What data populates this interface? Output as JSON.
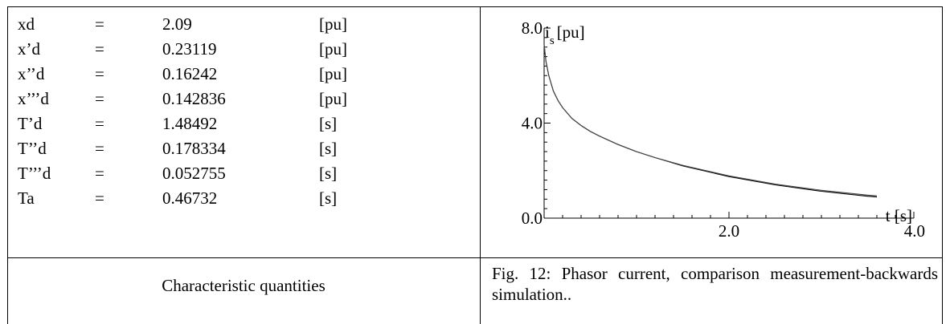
{
  "parameters": [
    {
      "name": "xd",
      "eq": "=",
      "value": "2.09",
      "unit": "[pu]"
    },
    {
      "name": "x’d",
      "eq": "=",
      "value": "0.23119",
      "unit": "[pu]"
    },
    {
      "name": "x’’d",
      "eq": "=",
      "value": "0.16242",
      "unit": "[pu]"
    },
    {
      "name": "x’’’d",
      "eq": "=",
      "value": "0.142836",
      "unit": "[pu]"
    },
    {
      "name": "T’d",
      "eq": "=",
      "value": "1.48492",
      "unit": "[s]"
    },
    {
      "name": "T’’d",
      "eq": "=",
      "value": "0.178334",
      "unit": "[s]"
    },
    {
      "name": "T’’’d",
      "eq": "=",
      "value": "0.052755",
      "unit": "[s]"
    },
    {
      "name": "Ta",
      "eq": "=",
      "value": "0.46732",
      "unit": "[s]"
    }
  ],
  "captions": {
    "left": "Characteristic quantities",
    "right": "Fig. 12: Phasor current, comparison measurement-backwards simulation.."
  },
  "chart_data": {
    "type": "line",
    "title": "",
    "ylabel_main": "i",
    "ylabel_sub": "s",
    "ylabel_unit": "[pu]",
    "xlabel": "t [s]",
    "xlim": [
      0,
      4.0
    ],
    "ylim": [
      0,
      8.0
    ],
    "x_ticks": [
      "2.0",
      "4.0"
    ],
    "y_ticks": [
      "8.0",
      "4.0",
      "0.0"
    ],
    "grid": false,
    "series": [
      {
        "name": "",
        "x": [
          0.0,
          0.02,
          0.05,
          0.1,
          0.15,
          0.2,
          0.3,
          0.4,
          0.5,
          0.6,
          0.8,
          1.0,
          1.2,
          1.5,
          2.0,
          2.5,
          3.0,
          3.5,
          3.6
        ],
        "y": [
          7.3,
          6.6,
          6.0,
          5.35,
          4.95,
          4.65,
          4.2,
          3.9,
          3.65,
          3.45,
          3.1,
          2.8,
          2.55,
          2.2,
          1.75,
          1.4,
          1.13,
          0.92,
          0.89
        ]
      },
      {
        "name": "",
        "x": [
          0.0,
          0.02,
          0.05,
          0.1,
          0.15,
          0.2,
          0.3,
          0.4,
          0.5,
          0.6,
          0.8,
          1.0,
          1.2,
          1.5,
          2.0,
          2.5,
          3.0,
          3.5,
          3.6
        ],
        "y": [
          7.3,
          6.6,
          6.0,
          5.35,
          4.95,
          4.65,
          4.2,
          3.9,
          3.65,
          3.45,
          3.1,
          2.8,
          2.55,
          2.22,
          1.78,
          1.43,
          1.17,
          0.97,
          0.94
        ]
      }
    ]
  }
}
